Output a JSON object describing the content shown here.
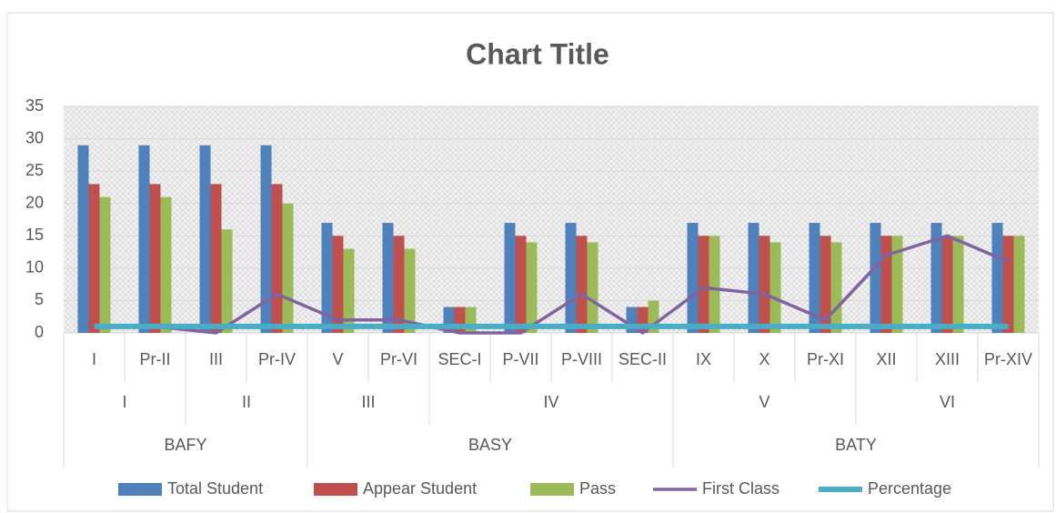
{
  "chart_data": {
    "type": "bar",
    "title": "Chart Title",
    "categories": [
      "I",
      "Pr-II",
      "III",
      "Pr-IV",
      "V",
      "Pr-VI",
      "SEC-I",
      "P-VII",
      "P-VIII",
      "SEC-II",
      "IX",
      "X",
      "Pr-XI",
      "XII",
      "XIII",
      "Pr-XIV"
    ],
    "categories_level2": [
      "I",
      "I",
      "II",
      "II",
      "III",
      "III",
      "IV",
      "IV",
      "IV",
      "IV",
      "V",
      "V",
      "V",
      "VI",
      "VI",
      "VI"
    ],
    "categories_level3": [
      "BAFY",
      "BAFY",
      "BAFY",
      "BAFY",
      "BASY",
      "BASY",
      "BASY",
      "BASY",
      "BASY",
      "BASY",
      "BATY",
      "BATY",
      "BATY",
      "BATY",
      "BATY",
      "BATY"
    ],
    "series": [
      {
        "name": "Total Student",
        "type": "bar",
        "color": "#4f81bd",
        "values": [
          29,
          29,
          29,
          29,
          17,
          17,
          4,
          17,
          17,
          4,
          17,
          17,
          17,
          17,
          17,
          17
        ]
      },
      {
        "name": "Appear Student",
        "type": "bar",
        "color": "#c0504d",
        "values": [
          23,
          23,
          23,
          23,
          15,
          15,
          4,
          15,
          15,
          4,
          15,
          15,
          15,
          15,
          15,
          15
        ]
      },
      {
        "name": "Pass",
        "type": "bar",
        "color": "#9bbb59",
        "values": [
          21,
          21,
          16,
          20,
          13,
          13,
          4,
          14,
          14,
          5,
          15,
          14,
          14,
          15,
          15,
          15
        ]
      },
      {
        "name": "First Class",
        "type": "line",
        "color": "#8064a2",
        "values": [
          1,
          1,
          0,
          6,
          2,
          2,
          0,
          0,
          6,
          0,
          7,
          6,
          2,
          12,
          15,
          11
        ]
      },
      {
        "name": "Percentage",
        "type": "line",
        "color": "#4bacc6",
        "values": [
          1,
          1,
          1,
          1,
          1,
          1,
          1,
          1,
          1,
          1,
          1,
          1,
          1,
          1,
          1,
          1
        ]
      }
    ],
    "ylim": [
      0,
      35
    ],
    "yticks": [
      0,
      5,
      10,
      15,
      20,
      25,
      30,
      35
    ],
    "grid": true,
    "legend": "bottom"
  }
}
